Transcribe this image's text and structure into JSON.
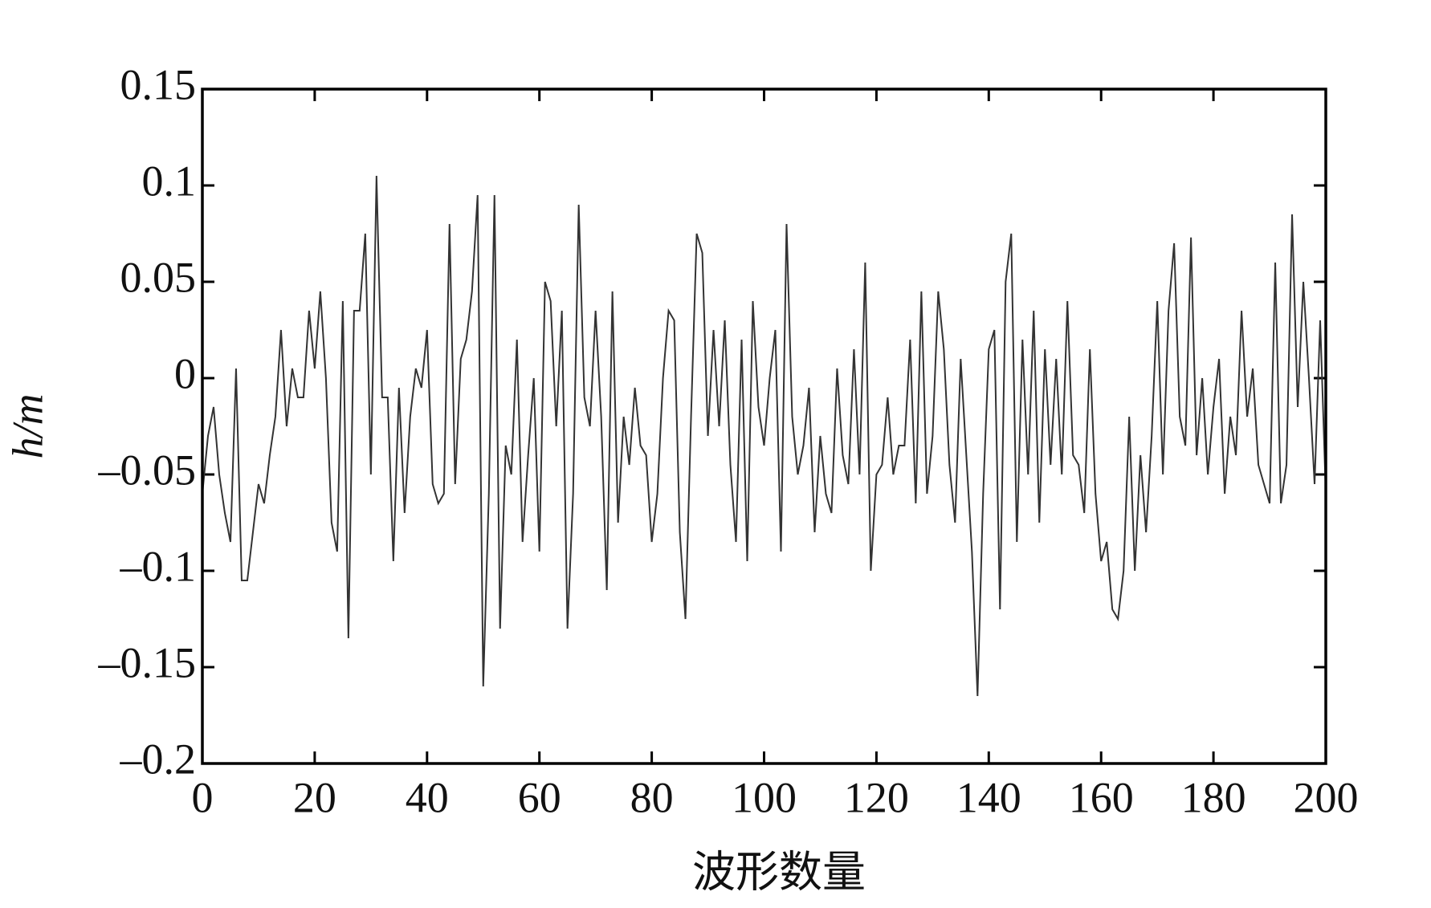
{
  "chart_data": {
    "type": "line",
    "xlabel": "波形数量",
    "ylabel": "h/m",
    "color": "#333333",
    "xlim": [
      0,
      200
    ],
    "xticks": [
      0,
      20,
      40,
      60,
      80,
      100,
      120,
      140,
      160,
      180,
      200
    ],
    "ylim": [
      -0.2,
      0.15
    ],
    "yticks": [
      {
        "value": -0.2,
        "label": "–0.2"
      },
      {
        "value": -0.15,
        "label": "–0.15"
      },
      {
        "value": -0.1,
        "label": "–0.1"
      },
      {
        "value": -0.05,
        "label": "–0.05"
      },
      0,
      0.05,
      0.1,
      0.15
    ],
    "x": [
      0,
      1,
      2,
      3,
      4,
      5,
      6,
      7,
      8,
      9,
      10,
      11,
      12,
      13,
      14,
      15,
      16,
      17,
      18,
      19,
      20,
      21,
      22,
      23,
      24,
      25,
      26,
      27,
      28,
      29,
      30,
      31,
      32,
      33,
      34,
      35,
      36,
      37,
      38,
      39,
      40,
      41,
      42,
      43,
      44,
      45,
      46,
      47,
      48,
      49,
      50,
      51,
      52,
      53,
      54,
      55,
      56,
      57,
      58,
      59,
      60,
      61,
      62,
      63,
      64,
      65,
      66,
      67,
      68,
      69,
      70,
      71,
      72,
      73,
      74,
      75,
      76,
      77,
      78,
      79,
      80,
      81,
      82,
      83,
      84,
      85,
      86,
      87,
      88,
      89,
      90,
      91,
      92,
      93,
      94,
      95,
      96,
      97,
      98,
      99,
      100,
      101,
      102,
      103,
      104,
      105,
      106,
      107,
      108,
      109,
      110,
      111,
      112,
      113,
      114,
      115,
      116,
      117,
      118,
      119,
      120,
      121,
      122,
      123,
      124,
      125,
      126,
      127,
      128,
      129,
      130,
      131,
      132,
      133,
      134,
      135,
      136,
      137,
      138,
      139,
      140,
      141,
      142,
      143,
      144,
      145,
      146,
      147,
      148,
      149,
      150,
      151,
      152,
      153,
      154,
      155,
      156,
      157,
      158,
      159,
      160,
      161,
      162,
      163,
      164,
      165,
      166,
      167,
      168,
      169,
      170,
      171,
      172,
      173,
      174,
      175,
      176,
      177,
      178,
      179,
      180,
      181,
      182,
      183,
      184,
      185,
      186,
      187,
      188,
      189,
      190,
      191,
      192,
      193,
      194,
      195,
      196,
      197,
      198,
      199,
      200
    ],
    "values": [
      -0.06,
      -0.03,
      -0.015,
      -0.05,
      -0.07,
      -0.085,
      0.005,
      -0.105,
      -0.105,
      -0.08,
      -0.055,
      -0.065,
      -0.04,
      -0.02,
      0.025,
      -0.025,
      0.005,
      -0.01,
      -0.01,
      0.035,
      0.005,
      0.045,
      0.0,
      -0.075,
      -0.09,
      0.04,
      -0.135,
      0.035,
      0.035,
      0.075,
      -0.05,
      0.105,
      -0.01,
      -0.01,
      -0.095,
      -0.005,
      -0.07,
      -0.02,
      0.005,
      -0.005,
      0.025,
      -0.055,
      -0.065,
      -0.06,
      0.08,
      -0.055,
      0.01,
      0.02,
      0.045,
      0.095,
      -0.16,
      -0.06,
      0.095,
      -0.13,
      -0.035,
      -0.05,
      0.02,
      -0.085,
      -0.04,
      0.0,
      -0.09,
      0.05,
      0.04,
      -0.025,
      0.035,
      -0.13,
      -0.06,
      0.09,
      -0.01,
      -0.025,
      0.035,
      -0.02,
      -0.11,
      0.045,
      -0.075,
      -0.02,
      -0.045,
      -0.005,
      -0.035,
      -0.04,
      -0.085,
      -0.06,
      0.0,
      0.035,
      0.03,
      -0.08,
      -0.125,
      -0.02,
      0.075,
      0.065,
      -0.03,
      0.025,
      -0.025,
      0.03,
      -0.045,
      -0.085,
      0.02,
      -0.095,
      0.04,
      -0.015,
      -0.035,
      0.0,
      0.025,
      -0.09,
      0.08,
      -0.02,
      -0.05,
      -0.035,
      -0.005,
      -0.08,
      -0.03,
      -0.06,
      -0.07,
      0.005,
      -0.04,
      -0.055,
      0.015,
      -0.05,
      0.06,
      -0.1,
      -0.05,
      -0.045,
      -0.01,
      -0.05,
      -0.035,
      -0.035,
      0.02,
      -0.065,
      0.045,
      -0.06,
      -0.03,
      0.045,
      0.015,
      -0.045,
      -0.075,
      0.01,
      -0.04,
      -0.09,
      -0.165,
      -0.06,
      0.015,
      0.025,
      -0.12,
      0.05,
      0.075,
      -0.085,
      0.02,
      -0.05,
      0.035,
      -0.075,
      0.015,
      -0.045,
      0.01,
      -0.05,
      0.04,
      -0.04,
      -0.045,
      -0.07,
      0.015,
      -0.06,
      -0.095,
      -0.085,
      -0.12,
      -0.125,
      -0.1,
      -0.02,
      -0.1,
      -0.04,
      -0.08,
      -0.03,
      0.04,
      -0.05,
      0.035,
      0.07,
      -0.02,
      -0.035,
      0.073,
      -0.04,
      0.0,
      -0.05,
      -0.015,
      0.01,
      -0.06,
      -0.02,
      -0.04,
      0.035,
      -0.02,
      0.005,
      -0.045,
      -0.055,
      -0.065,
      0.06,
      -0.065,
      -0.045,
      0.085,
      -0.015,
      0.05,
      0.0,
      -0.055,
      0.03,
      -0.06
    ]
  }
}
